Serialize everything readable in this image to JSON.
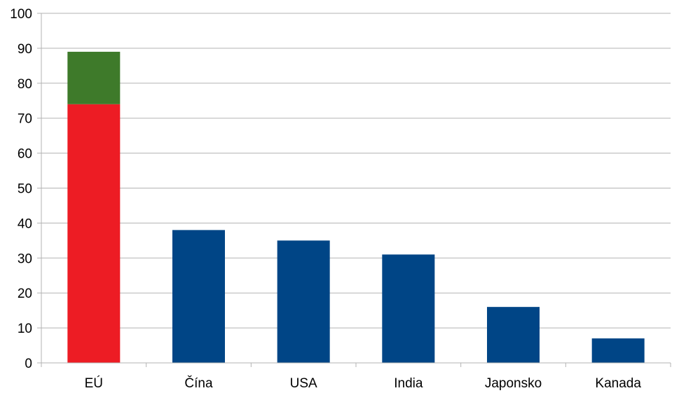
{
  "chart_data": {
    "type": "bar",
    "stacked": true,
    "categories": [
      "EÚ",
      "Čína",
      "USA",
      "India",
      "Japonsko",
      "Kanada"
    ],
    "series": [
      {
        "values": [
          74,
          38,
          35,
          31,
          16,
          7
        ],
        "colors": [
          "#ed1c24",
          "#004586",
          "#004586",
          "#004586",
          "#004586",
          "#004586"
        ]
      },
      {
        "values": [
          15,
          0,
          0,
          0,
          0,
          0
        ],
        "color": "#3e7a2a"
      }
    ],
    "ylim": [
      0,
      100
    ],
    "yticks": [
      0,
      10,
      20,
      30,
      40,
      50,
      60,
      70,
      80,
      90,
      100
    ],
    "grid": true,
    "title": "",
    "xlabel": "",
    "ylabel": ""
  }
}
